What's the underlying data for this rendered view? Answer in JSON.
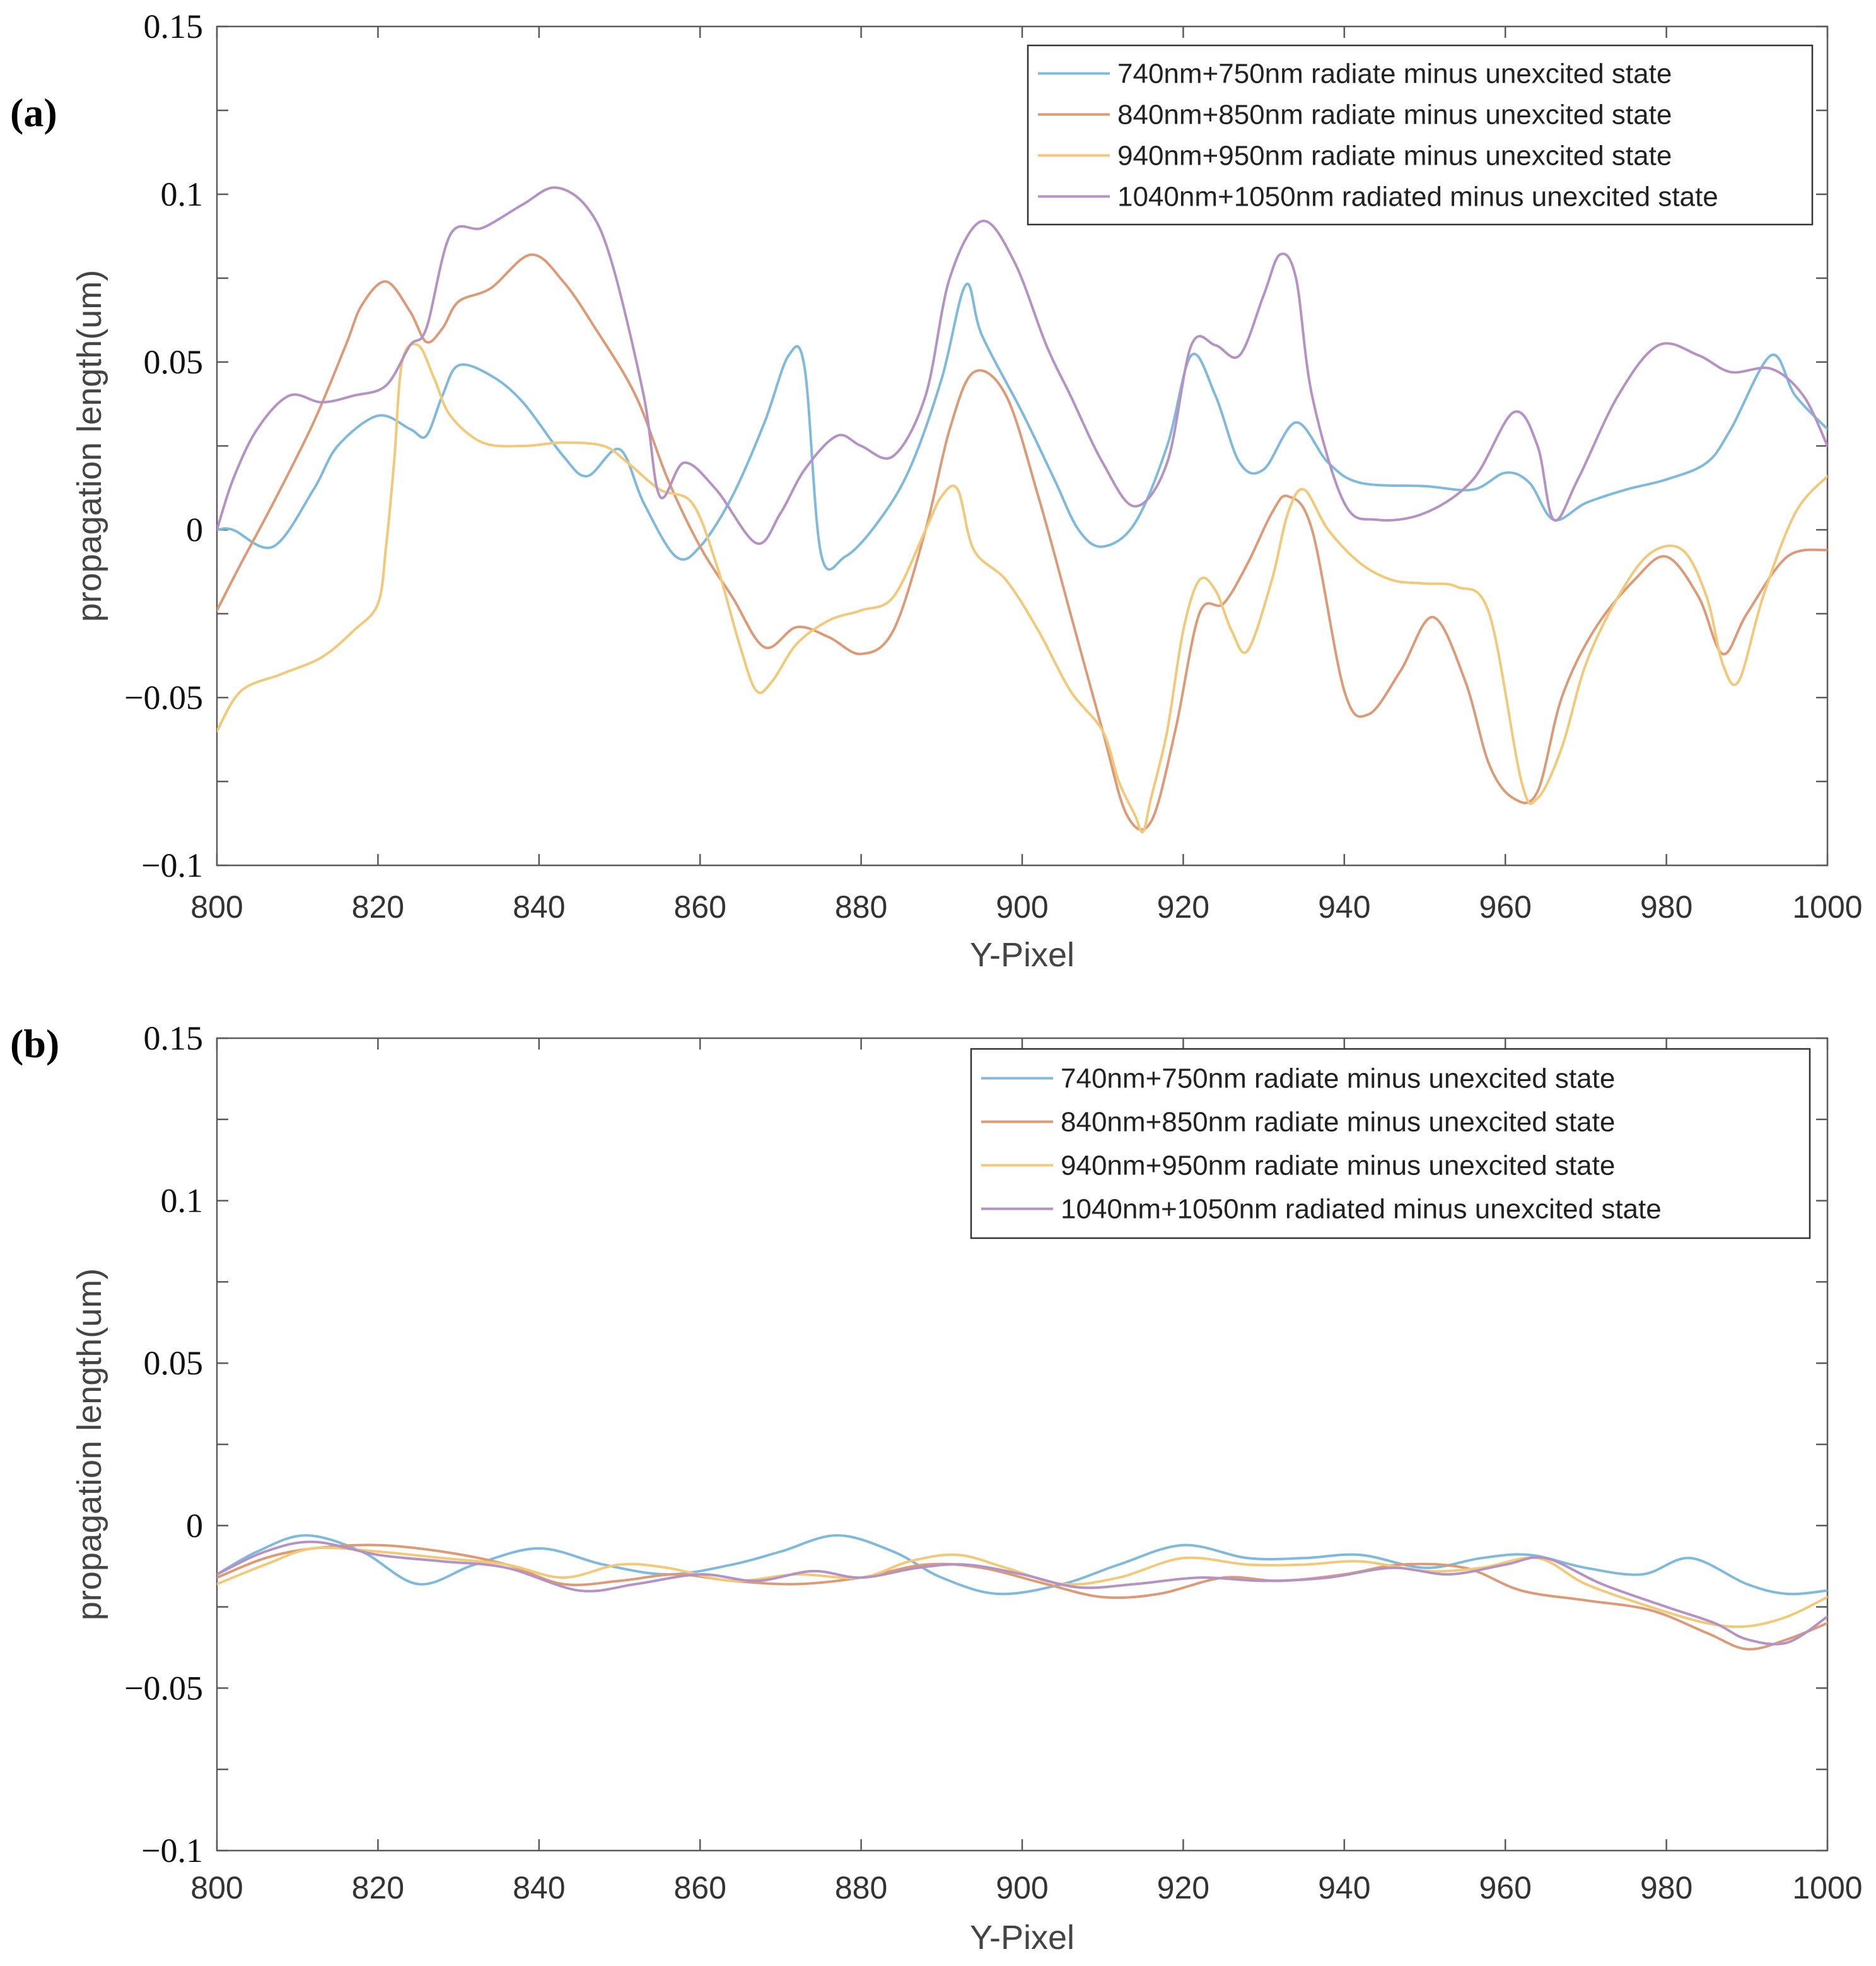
{
  "chart_data": [
    {
      "type": "line",
      "panel_label": "(a)",
      "xlabel": "Y-Pixel",
      "ylabel": "propagation length(um)",
      "xlim": [
        800,
        1000
      ],
      "ylim": [
        -0.1,
        0.15
      ],
      "xticks": [
        "800",
        "820",
        "840",
        "860",
        "880",
        "900",
        "920",
        "940",
        "960",
        "980",
        "1000"
      ],
      "yticks": [
        "0.15",
        "0.1",
        "0.05",
        "0",
        "−0.05",
        "−0.1"
      ],
      "legend_position": "top-right",
      "series": [
        {
          "name": "740nm+750nm radiate minus unexcited state",
          "color": "#7fb9dc",
          "x": [
            800,
            802,
            807,
            812,
            815,
            820,
            824,
            826,
            828,
            830,
            834,
            838,
            843,
            846,
            850,
            853,
            857,
            860,
            864,
            868,
            871,
            873,
            875,
            878,
            882,
            886,
            890,
            893,
            895,
            900,
            904,
            907,
            910,
            914,
            918,
            921,
            924,
            927,
            930,
            934,
            938,
            942,
            950,
            956,
            960,
            963,
            966,
            970,
            975,
            980,
            985,
            988,
            993,
            996,
            1000
          ],
          "y": [
            0,
            0,
            -0.005,
            0.012,
            0.025,
            0.034,
            0.03,
            0.028,
            0.04,
            0.049,
            0.046,
            0.038,
            0.022,
            0.016,
            0.024,
            0.008,
            -0.008,
            -0.005,
            0.01,
            0.032,
            0.052,
            0.048,
            -0.007,
            -0.008,
            0.002,
            0.018,
            0.045,
            0.073,
            0.058,
            0.035,
            0.015,
            0,
            -0.005,
            0.002,
            0.025,
            0.052,
            0.04,
            0.02,
            0.018,
            0.032,
            0.02,
            0.014,
            0.013,
            0.012,
            0.017,
            0.014,
            0.003,
            0.008,
            0.012,
            0.015,
            0.02,
            0.03,
            0.052,
            0.04,
            0.03
          ]
        },
        {
          "name": "840nm+850nm radiate minus unexcited state",
          "color": "#dd9a77",
          "x": [
            800,
            803,
            807,
            812,
            816,
            818,
            821,
            824,
            826,
            828,
            830,
            834,
            839,
            843,
            847,
            852,
            856,
            860,
            864,
            868,
            872,
            876,
            880,
            884,
            888,
            891,
            894,
            898,
            902,
            906,
            910,
            913,
            916,
            919,
            922,
            925,
            928,
            931,
            933,
            936,
            940,
            943,
            947,
            951,
            955,
            958,
            961,
            964,
            967,
            971,
            976,
            980,
            984,
            987,
            990,
            995,
            1000
          ],
          "y": [
            -0.024,
            -0.01,
            0.008,
            0.032,
            0.055,
            0.067,
            0.074,
            0.065,
            0.056,
            0.06,
            0.068,
            0.072,
            0.082,
            0.074,
            0.06,
            0.04,
            0.015,
            -0.005,
            -0.02,
            -0.035,
            -0.029,
            -0.032,
            -0.037,
            -0.03,
            0,
            0.03,
            0.047,
            0.04,
            0.01,
            -0.025,
            -0.06,
            -0.085,
            -0.087,
            -0.06,
            -0.025,
            -0.022,
            -0.01,
            0.005,
            0.01,
            0,
            -0.048,
            -0.055,
            -0.042,
            -0.026,
            -0.045,
            -0.07,
            -0.08,
            -0.078,
            -0.05,
            -0.03,
            -0.015,
            -0.008,
            -0.02,
            -0.037,
            -0.025,
            -0.008,
            -0.006
          ]
        },
        {
          "name": "940nm+950nm radiate minus unexcited state",
          "color": "#f2c978",
          "x": [
            800,
            803,
            808,
            813,
            817,
            820,
            821,
            822,
            823,
            825,
            827,
            829,
            833,
            838,
            843,
            848,
            851,
            855,
            859,
            862,
            865,
            867,
            869,
            872,
            876,
            880,
            884,
            888,
            890,
            892,
            894,
            898,
            902,
            906,
            910,
            912,
            914,
            915,
            916,
            918,
            920,
            922,
            924,
            926,
            928,
            931,
            933,
            935,
            938,
            942,
            946,
            950,
            954,
            958,
            962,
            964,
            967,
            970,
            974,
            978,
            982,
            985,
            987,
            989,
            992,
            996,
            1000
          ],
          "y": [
            -0.06,
            -0.048,
            -0.043,
            -0.038,
            -0.03,
            -0.022,
            -0.005,
            0.02,
            0.05,
            0.055,
            0.045,
            0.034,
            0.026,
            0.025,
            0.026,
            0.025,
            0.02,
            0.012,
            0.008,
            -0.01,
            -0.035,
            -0.048,
            -0.045,
            -0.034,
            -0.027,
            -0.024,
            -0.02,
            0,
            0.01,
            0.012,
            -0.006,
            -0.015,
            -0.03,
            -0.048,
            -0.06,
            -0.075,
            -0.085,
            -0.09,
            -0.08,
            -0.06,
            -0.03,
            -0.015,
            -0.018,
            -0.03,
            -0.036,
            -0.015,
            0.005,
            0.012,
            0,
            -0.01,
            -0.015,
            -0.016,
            -0.017,
            -0.025,
            -0.075,
            -0.08,
            -0.065,
            -0.04,
            -0.02,
            -0.007,
            -0.006,
            -0.02,
            -0.04,
            -0.045,
            -0.02,
            0.005,
            0.016
          ]
        },
        {
          "name": "1040nm+1050nm radiated minus unexcited state",
          "color": "#b493c4",
          "x": [
            800,
            802,
            805,
            809,
            813,
            817,
            821,
            824,
            826,
            829,
            833,
            838,
            842,
            846,
            849,
            853,
            855,
            858,
            862,
            867,
            870,
            873,
            877,
            880,
            884,
            888,
            891,
            895,
            899,
            903,
            906,
            910,
            914,
            918,
            921,
            924,
            927,
            930,
            932,
            934,
            936,
            940,
            944,
            950,
            956,
            961,
            964,
            966,
            969,
            974,
            979,
            984,
            988,
            993,
            997,
            1000
          ],
          "y": [
            0,
            0.015,
            0.03,
            0.04,
            0.038,
            0.04,
            0.043,
            0.055,
            0.06,
            0.088,
            0.09,
            0.097,
            0.102,
            0.096,
            0.08,
            0.04,
            0.01,
            0.02,
            0.012,
            -0.004,
            0.005,
            0.018,
            0.028,
            0.025,
            0.022,
            0.04,
            0.075,
            0.092,
            0.08,
            0.055,
            0.04,
            0.02,
            0.007,
            0.02,
            0.055,
            0.055,
            0.052,
            0.07,
            0.082,
            0.075,
            0.04,
            0.008,
            0.003,
            0.005,
            0.015,
            0.035,
            0.025,
            0.003,
            0.015,
            0.04,
            0.055,
            0.052,
            0.047,
            0.048,
            0.04,
            0.025
          ]
        }
      ]
    },
    {
      "type": "line",
      "panel_label": "(b)",
      "xlabel": "Y-Pixel",
      "ylabel": "propagation length(um)",
      "xlim": [
        800,
        1000
      ],
      "ylim": [
        -0.1,
        0.15
      ],
      "xticks": [
        "800",
        "820",
        "840",
        "860",
        "880",
        "900",
        "920",
        "940",
        "960",
        "980",
        "1000"
      ],
      "yticks": [
        "0.15",
        "0.1",
        "0.05",
        "0",
        "−0.05",
        "−0.1"
      ],
      "legend_position": "top-right",
      "series": [
        {
          "name": "740nm+750nm radiate minus unexcited state",
          "color": "#7fb9dc",
          "x": [
            800,
            805,
            811,
            818,
            825,
            832,
            840,
            848,
            856,
            864,
            870,
            877,
            884,
            890,
            897,
            905,
            912,
            920,
            928,
            935,
            942,
            950,
            957,
            963,
            970,
            977,
            983,
            990,
            995,
            1000
          ],
          "y": [
            -0.015,
            -0.008,
            -0.003,
            -0.008,
            -0.018,
            -0.012,
            -0.007,
            -0.012,
            -0.015,
            -0.012,
            -0.008,
            -0.003,
            -0.008,
            -0.016,
            -0.021,
            -0.018,
            -0.012,
            -0.006,
            -0.01,
            -0.01,
            -0.009,
            -0.013,
            -0.01,
            -0.009,
            -0.013,
            -0.015,
            -0.01,
            -0.018,
            -0.021,
            -0.02
          ]
        },
        {
          "name": "840nm+850nm radiate minus unexcited state",
          "color": "#dd9a77",
          "x": [
            800,
            806,
            812,
            820,
            828,
            836,
            843,
            850,
            857,
            864,
            872,
            880,
            888,
            895,
            903,
            910,
            917,
            925,
            932,
            940,
            947,
            955,
            962,
            970,
            978,
            985,
            990,
            995,
            1000
          ],
          "y": [
            -0.016,
            -0.01,
            -0.007,
            -0.006,
            -0.008,
            -0.012,
            -0.018,
            -0.017,
            -0.015,
            -0.017,
            -0.018,
            -0.016,
            -0.012,
            -0.013,
            -0.018,
            -0.022,
            -0.021,
            -0.016,
            -0.017,
            -0.015,
            -0.012,
            -0.013,
            -0.02,
            -0.023,
            -0.026,
            -0.033,
            -0.038,
            -0.035,
            -0.03
          ]
        },
        {
          "name": "940nm+950nm radiate minus unexcited state",
          "color": "#f2c978",
          "x": [
            800,
            806,
            812,
            820,
            828,
            836,
            843,
            850,
            856,
            864,
            872,
            880,
            886,
            892,
            898,
            905,
            912,
            920,
            928,
            935,
            942,
            950,
            957,
            964,
            970,
            978,
            985,
            990,
            995,
            1000
          ],
          "y": [
            -0.018,
            -0.012,
            -0.007,
            -0.008,
            -0.01,
            -0.012,
            -0.016,
            -0.012,
            -0.013,
            -0.017,
            -0.015,
            -0.016,
            -0.011,
            -0.009,
            -0.013,
            -0.018,
            -0.016,
            -0.01,
            -0.012,
            -0.012,
            -0.011,
            -0.014,
            -0.013,
            -0.01,
            -0.018,
            -0.025,
            -0.03,
            -0.031,
            -0.028,
            -0.022
          ]
        },
        {
          "name": "1040nm+1050nm radiated minus unexcited state",
          "color": "#b493c4",
          "x": [
            800,
            806,
            812,
            820,
            828,
            836,
            845,
            852,
            860,
            867,
            874,
            880,
            887,
            893,
            900,
            907,
            914,
            922,
            930,
            938,
            946,
            953,
            960,
            965,
            972,
            980,
            986,
            990,
            995,
            1000
          ],
          "y": [
            -0.015,
            -0.008,
            -0.005,
            -0.009,
            -0.011,
            -0.013,
            -0.02,
            -0.018,
            -0.015,
            -0.017,
            -0.014,
            -0.016,
            -0.013,
            -0.012,
            -0.015,
            -0.019,
            -0.018,
            -0.016,
            -0.017,
            -0.016,
            -0.013,
            -0.015,
            -0.012,
            -0.01,
            -0.018,
            -0.025,
            -0.03,
            -0.035,
            -0.036,
            -0.028
          ]
        }
      ]
    }
  ]
}
